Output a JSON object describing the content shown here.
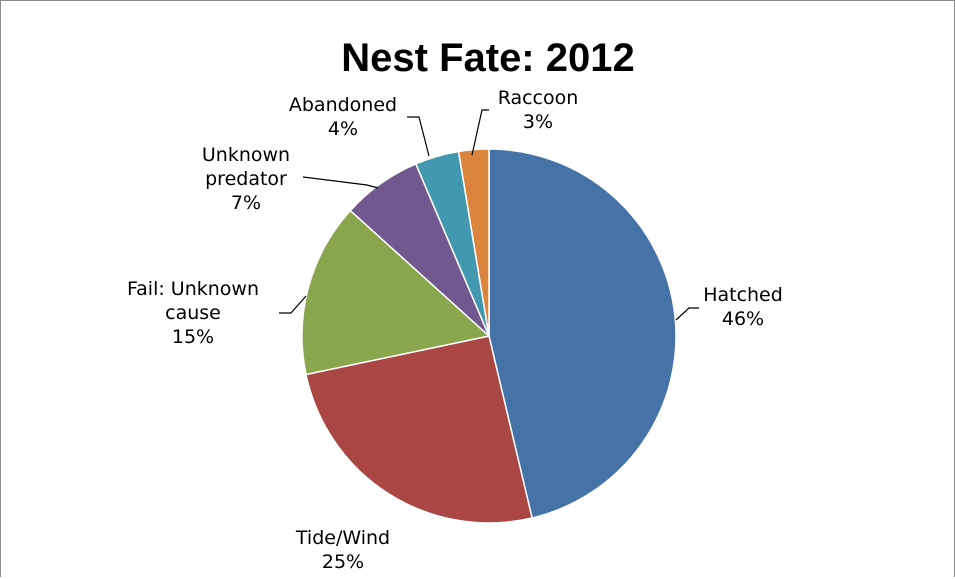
{
  "chart_data": {
    "type": "pie",
    "title": "Nest Fate: 2012",
    "start_angle_deg": 0,
    "direction": "clockwise",
    "slices": [
      {
        "label": "Hatched",
        "label_lines": [
          "Hatched"
        ],
        "percent_text": "46%",
        "value": 46.3,
        "color": "#4572A7"
      },
      {
        "label": "Tide/Wind",
        "label_lines": [
          "Tide/Wind"
        ],
        "percent_text": "25%",
        "value": 25.4,
        "color": "#AA4643"
      },
      {
        "label": "Fail: Unknown cause",
        "label_lines": [
          "Fail: Unknown",
          "cause"
        ],
        "percent_text": "15%",
        "value": 15.0,
        "color": "#89A54E"
      },
      {
        "label": "Unknown predator",
        "label_lines": [
          "Unknown",
          "predator"
        ],
        "percent_text": "7%",
        "value": 6.9,
        "color": "#71588F"
      },
      {
        "label": "Abandoned",
        "label_lines": [
          "Abandoned"
        ],
        "percent_text": "4%",
        "value": 3.8,
        "color": "#4198AF"
      },
      {
        "label": "Raccoon",
        "label_lines": [
          "Raccoon"
        ],
        "percent_text": "3%",
        "value": 2.6,
        "color": "#DB843D"
      }
    ]
  }
}
